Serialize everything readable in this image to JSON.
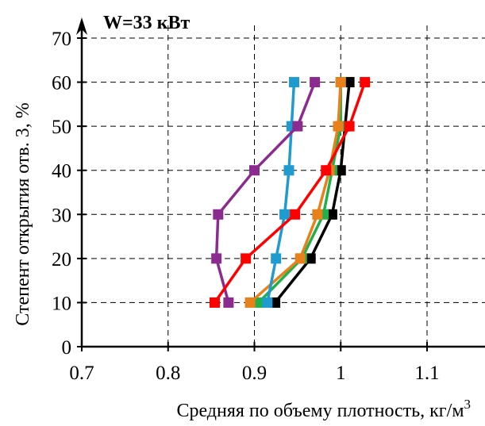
{
  "chart_data": {
    "type": "line",
    "title": "",
    "annotation": "W=33 кВт",
    "xlabel": "Средняя по объему плотность, кг/м",
    "xlabel_sup": "3",
    "ylabel": "Степент открытия отв. 3, %",
    "xlim": [
      0.7,
      1.15
    ],
    "ylim": [
      0,
      70
    ],
    "x_ticks": [
      0.7,
      0.8,
      0.9,
      1,
      1.1
    ],
    "x_tick_labels": [
      "0.7",
      "0.8",
      "0.9",
      "1",
      "1.1"
    ],
    "y_ticks": [
      0,
      10,
      20,
      30,
      40,
      50,
      60,
      70
    ],
    "y_tick_labels": [
      "0",
      "10",
      "20",
      "30",
      "40",
      "50",
      "60",
      "70"
    ],
    "grid": true,
    "legend": "none",
    "series": [
      {
        "color": "#000000",
        "points": [
          [
            0.924,
            10
          ],
          [
            0.965,
            20
          ],
          [
            0.99,
            30
          ],
          [
            1.0,
            40
          ],
          [
            1.005,
            50
          ],
          [
            1.01,
            60
          ]
        ]
      },
      {
        "color": "#1fb04c",
        "points": [
          [
            0.905,
            10
          ],
          [
            0.955,
            20
          ],
          [
            0.98,
            30
          ],
          [
            0.99,
            40
          ],
          [
            1.0,
            50
          ],
          [
            1.0,
            60
          ]
        ]
      },
      {
        "color": "#e8801c",
        "points": [
          [
            0.895,
            10
          ],
          [
            0.953,
            20
          ],
          [
            0.973,
            30
          ],
          [
            0.987,
            40
          ],
          [
            0.997,
            50
          ],
          [
            1.0,
            60
          ]
        ]
      },
      {
        "color": "#1f9bcf",
        "points": [
          [
            0.915,
            10
          ],
          [
            0.925,
            20
          ],
          [
            0.935,
            30
          ],
          [
            0.94,
            40
          ],
          [
            0.943,
            50
          ],
          [
            0.946,
            60
          ]
        ]
      },
      {
        "color": "#8b2a8f",
        "points": [
          [
            0.87,
            10
          ],
          [
            0.856,
            20
          ],
          [
            0.858,
            30
          ],
          [
            0.9,
            40
          ],
          [
            0.95,
            50
          ],
          [
            0.97,
            60
          ]
        ]
      },
      {
        "color": "#ff0000",
        "points": [
          [
            0.854,
            10
          ],
          [
            0.89,
            20
          ],
          [
            0.947,
            30
          ],
          [
            0.983,
            40
          ],
          [
            1.01,
            50
          ],
          [
            1.028,
            60
          ]
        ]
      }
    ]
  }
}
